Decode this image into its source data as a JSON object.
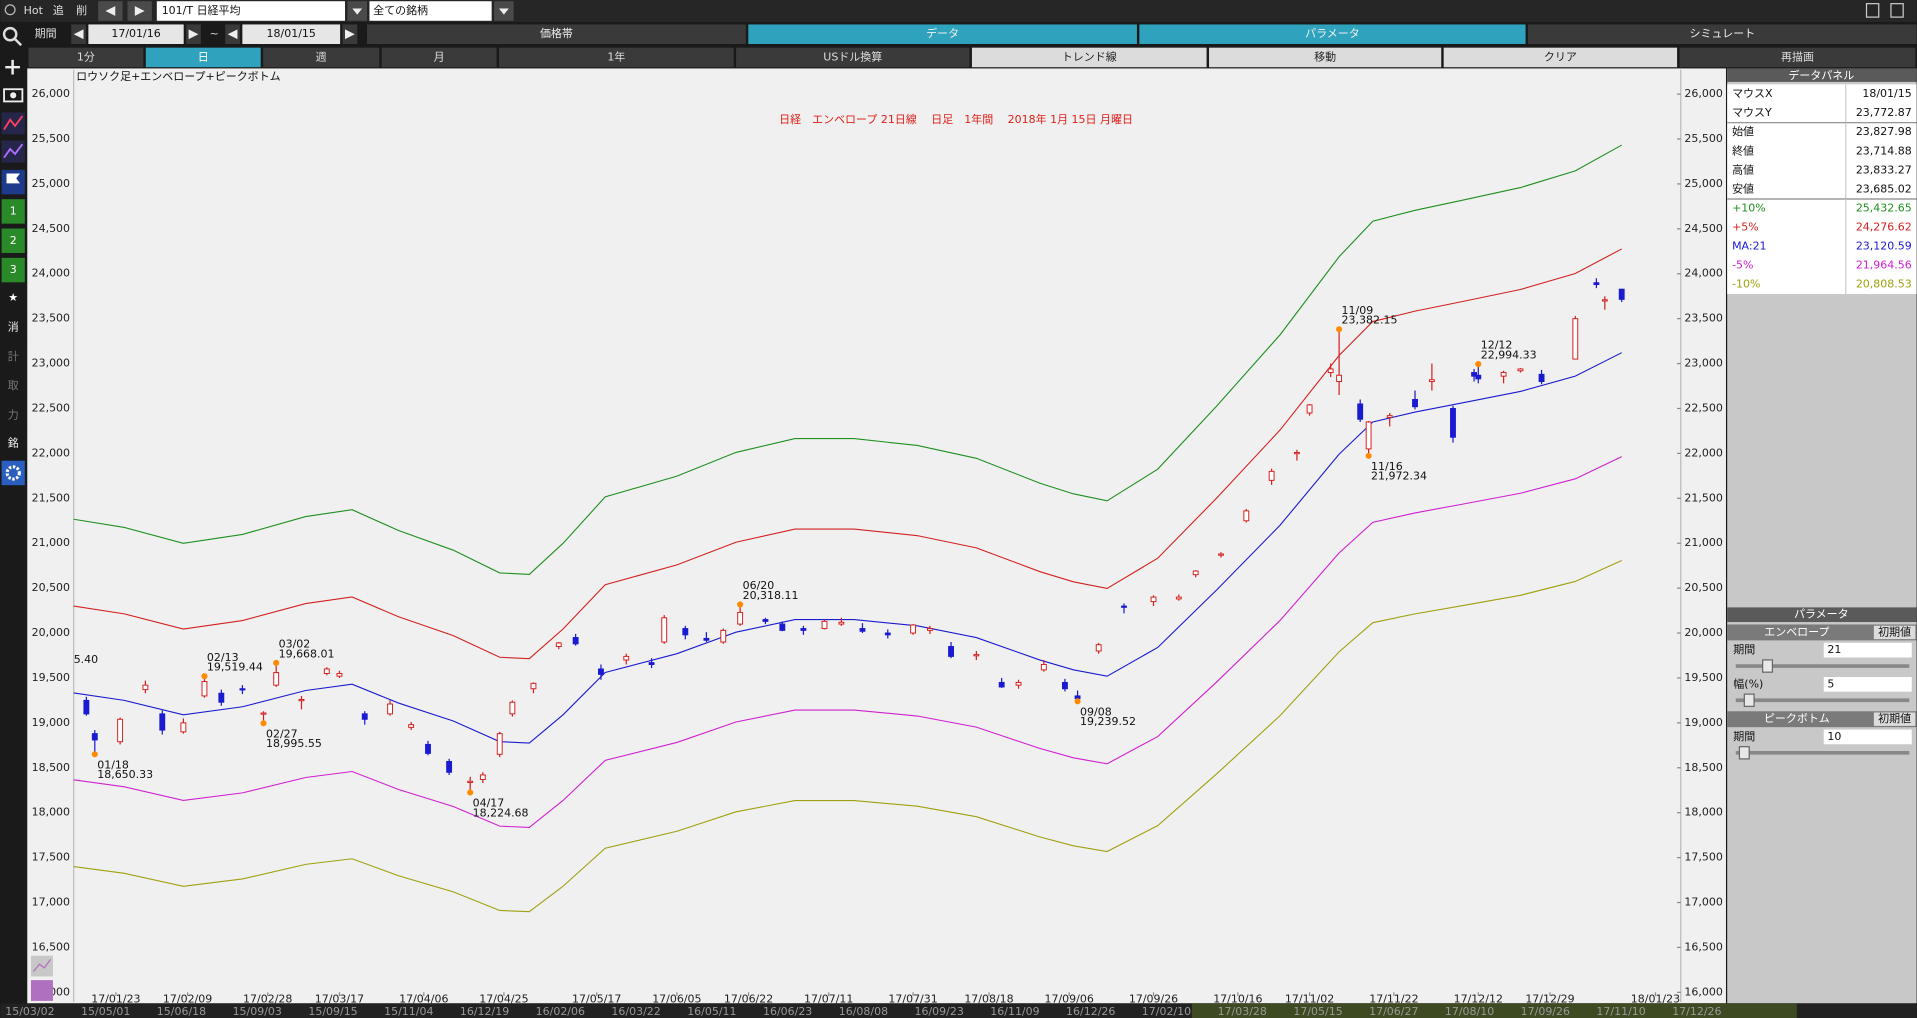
{
  "toolbar": {
    "hot": "Hot",
    "add": "追",
    "del": "削",
    "symbol": "101/T 日経平均",
    "universe": "全ての銘柄",
    "period_label": "期間",
    "from": "17/01/16",
    "tilde": "~",
    "to": "18/01/15"
  },
  "tabs": [
    "価格帯",
    "データ",
    "パラメータ",
    "シミュレート"
  ],
  "buttons": [
    "1分",
    "日",
    "週",
    "月",
    "1年",
    "USドル換算",
    "トレンド線",
    "移動",
    "クリア",
    "再描画"
  ],
  "sidebar": [
    "1",
    "2",
    "3",
    "★",
    "消",
    "計",
    "取",
    "力",
    "銘"
  ],
  "chart_data": {
    "type": "candlestick",
    "title": "日経　エンベロープ 21日線　 日足　1年間　 2018年 1月 15日 月曜日",
    "subtitle": "ロウソク足+エンベロープ+ピークボトム",
    "x": [
      "17/01/16",
      "17/01/18",
      "17/01/24",
      "17/01/30",
      "17/02/03",
      "17/02/08",
      "17/02/13",
      "17/02/17",
      "17/02/22",
      "17/02/27",
      "17/03/02",
      "17/03/08",
      "17/03/14",
      "17/03/17",
      "17/03/23",
      "17/03/29",
      "17/04/03",
      "17/04/07",
      "17/04/12",
      "17/04/17",
      "17/04/20",
      "17/04/24",
      "17/04/27",
      "17/05/02",
      "17/05/08",
      "17/05/12",
      "17/05/18",
      "17/05/24",
      "17/05/30",
      "17/06/02",
      "17/06/07",
      "17/06/12",
      "17/06/16",
      "17/06/20",
      "17/06/26",
      "17/06/30",
      "17/07/05",
      "17/07/10",
      "17/07/14",
      "17/07/19",
      "17/07/25",
      "17/07/31",
      "17/08/04",
      "17/08/09",
      "17/08/15",
      "17/08/21",
      "17/08/25",
      "17/08/31",
      "17/09/05",
      "17/09/08",
      "17/09/13",
      "17/09/19",
      "17/09/26",
      "17/10/02",
      "17/10/06",
      "17/10/12",
      "17/10/18",
      "17/10/24",
      "17/10/30",
      "17/11/02",
      "17/11/07",
      "17/11/09",
      "17/11/14",
      "17/11/16",
      "17/11/21",
      "17/11/27",
      "17/12/01",
      "17/12/06",
      "17/12/11",
      "17/12/12",
      "17/12/18",
      "17/12/22",
      "17/12/27",
      "18/01/04",
      "18/01/09",
      "18/01/11",
      "18/01/15"
    ],
    "open": [
      19250,
      18880,
      18790,
      19370,
      19100,
      18900,
      19300,
      19330,
      19380,
      19100,
      19420,
      19250,
      19550,
      19520,
      19100,
      19100,
      18950,
      18760,
      18570,
      18340,
      18370,
      18650,
      19100,
      19380,
      19850,
      19950,
      19600,
      19700,
      19670,
      19900,
      20050,
      19940,
      19900,
      20100,
      20150,
      20100,
      20050,
      20050,
      20100,
      20050,
      20000,
      20000,
      20030,
      19850,
      19750,
      19450,
      19420,
      19590,
      19450,
      19300,
      19800,
      20300,
      20350,
      20380,
      20650,
      20870,
      21250,
      21700,
      22000,
      22450,
      22900,
      22800,
      22550,
      22050,
      22400,
      22600,
      22800,
      22500,
      22900,
      22870,
      22860,
      22920,
      22880,
      23050,
      23900,
      23700,
      23827.98
    ],
    "high": [
      19290,
      18920,
      19060,
      19470,
      19140,
      19050,
      19520,
      19370,
      19420,
      19130,
      19668,
      19300,
      19620,
      19580,
      19130,
      19250,
      19010,
      18800,
      18600,
      18400,
      18450,
      18900,
      19250,
      19450,
      19900,
      19990,
      19650,
      19770,
      19720,
      20200,
      20080,
      20010,
      20050,
      20318,
      20170,
      20130,
      20080,
      20150,
      20170,
      20110,
      20040,
      20100,
      20080,
      19900,
      19800,
      19500,
      19480,
      19700,
      19490,
      19360,
      19890,
      20330,
      20420,
      20430,
      20700,
      20900,
      21380,
      21830,
      22040,
      22550,
      23000,
      23382,
      22600,
      22360,
      22450,
      22700,
      23000,
      22530,
      22940,
      22994,
      22920,
      22950,
      22930,
      23530,
      23950,
      23750,
      23833.27
    ],
    "low": [
      19080,
      18650,
      18760,
      19330,
      18870,
      18880,
      19280,
      19190,
      19320,
      18995,
      19400,
      19150,
      19530,
      19500,
      18980,
      19080,
      18920,
      18640,
      18420,
      18224,
      18330,
      18620,
      19070,
      19330,
      19820,
      19860,
      19480,
      19650,
      19610,
      19880,
      19930,
      19900,
      19880,
      20080,
      20100,
      20020,
      19980,
      20040,
      20080,
      20000,
      19940,
      19980,
      19990,
      19720,
      19700,
      19390,
      19380,
      19570,
      19350,
      19239,
      19770,
      20220,
      20300,
      20360,
      20620,
      20840,
      21230,
      21650,
      21920,
      22420,
      22850,
      22650,
      22350,
      21972,
      22300,
      22490,
      22700,
      22120,
      22800,
      22780,
      22780,
      22900,
      22770,
      23050,
      23840,
      23600,
      23685.02
    ],
    "close": [
      19100,
      18810,
      19040,
      19420,
      18920,
      19000,
      19460,
      19230,
      19370,
      19110,
      19560,
      19260,
      19600,
      19550,
      19040,
      19210,
      18980,
      18660,
      18450,
      18350,
      18420,
      18880,
      19230,
      19440,
      19890,
      19880,
      19540,
      19740,
      19650,
      20170,
      19980,
      19920,
      20030,
      20230,
      20130,
      20030,
      20030,
      20130,
      20120,
      20020,
      19980,
      20090,
      20050,
      19740,
      19760,
      19400,
      19450,
      19650,
      19380,
      19270,
      19870,
      20300,
      20400,
      20400,
      20690,
      20880,
      21360,
      21800,
      22010,
      22540,
      22940,
      22870,
      22380,
      22350,
      22420,
      22520,
      22820,
      22180,
      22860,
      22830,
      22900,
      22940,
      22800,
      23500,
      23880,
      23710,
      23714.88
    ],
    "up_color": "#d42020",
    "down_color": "#1a1ad0",
    "line_x": [
      "17/01/13",
      "17/01/25",
      "17/02/08",
      "17/02/22",
      "17/03/09",
      "17/03/20",
      "17/03/31",
      "17/04/13",
      "17/04/24",
      "17/05/01",
      "17/05/09",
      "17/05/19",
      "17/06/05",
      "17/06/19",
      "17/07/03",
      "17/07/17",
      "17/08/01",
      "17/08/15",
      "17/08/30",
      "17/09/07",
      "17/09/15",
      "17/09/27",
      "17/10/11",
      "17/10/26",
      "17/11/09",
      "17/11/17",
      "17/11/27",
      "17/12/08",
      "17/12/22",
      "18/01/04",
      "18/01/15"
    ],
    "lines": [
      {
        "color": "#1f8f1f",
        "values": [
          21266,
          21175,
          20999,
          21098,
          21296,
          21373,
          21142,
          20922,
          20669,
          20653,
          20999,
          21516,
          21747,
          22011,
          22165,
          22165,
          22088,
          21945,
          21670,
          21549,
          21472,
          21824,
          22528,
          23320,
          24189,
          24585,
          24706,
          24816,
          24959,
          25146,
          25432.65
        ]
      },
      {
        "color": "#d42020",
        "values": [
          20300,
          20213,
          20045,
          20139,
          20328,
          20402,
          20181,
          19971,
          19730,
          19714,
          20045,
          20538,
          20759,
          21011,
          21158,
          21158,
          21084,
          20948,
          20685,
          20570,
          20496,
          20832,
          21504,
          22260,
          23090,
          23468,
          23583,
          23688,
          23825,
          24003,
          24276.62
        ]
      },
      {
        "color": "#1a1ad0",
        "values": [
          19333,
          19250,
          19090,
          19180,
          19360,
          19430,
          19220,
          19020,
          18790,
          18775,
          19090,
          19560,
          19770,
          20010,
          20150,
          20150,
          20080,
          19950,
          19700,
          19590,
          19520,
          19840,
          20480,
          21200,
          21990,
          22350,
          22460,
          22560,
          22690,
          22860,
          23120.59
        ]
      },
      {
        "color": "#d020d0",
        "values": [
          18366,
          18288,
          18136,
          18221,
          18392,
          18459,
          18259,
          18069,
          17851,
          17836,
          18136,
          18582,
          18782,
          19010,
          19143,
          19143,
          19076,
          18953,
          18715,
          18611,
          18544,
          18848,
          19456,
          20140,
          20891,
          21233,
          21337,
          21432,
          21556,
          21717,
          21964.56
        ]
      },
      {
        "color": "#a0a010",
        "values": [
          17400,
          17325,
          17181,
          17262,
          17424,
          17487,
          17298,
          17118,
          16911,
          16898,
          17181,
          17604,
          17793,
          18009,
          18135,
          18135,
          18072,
          17955,
          17730,
          17631,
          17568,
          17856,
          18432,
          19080,
          19791,
          20115,
          20214,
          20304,
          20421,
          20574,
          20808.53
        ]
      }
    ],
    "xlim": [
      "17/01/13",
      "18/01/29"
    ],
    "xticks": [
      "17/01/23",
      "17/02/09",
      "17/02/28",
      "17/03/17",
      "17/04/06",
      "17/04/25",
      "17/05/17",
      "17/06/05",
      "17/06/22",
      "17/07/11",
      "17/07/31",
      "17/08/18",
      "17/09/06",
      "17/09/26",
      "17/10/16",
      "17/11/02",
      "17/11/22",
      "17/12/12",
      "17/12/29",
      "18/01/23"
    ],
    "ylim": [
      16000,
      26000
    ],
    "yticks": [
      {
        "value": 16000,
        "label": "16,000"
      },
      {
        "value": 16500,
        "label": "16,500"
      },
      {
        "value": 17000,
        "label": "17,000"
      },
      {
        "value": 17500,
        "label": "17,500"
      },
      {
        "value": 18000,
        "label": "18,000"
      },
      {
        "value": 18500,
        "label": "18,500"
      },
      {
        "value": 19000,
        "label": "19,000"
      },
      {
        "value": 19500,
        "label": "19,500"
      },
      {
        "value": 20000,
        "label": "20,000"
      },
      {
        "value": 20500,
        "label": "20,500"
      },
      {
        "value": 21000,
        "label": "21,000"
      },
      {
        "value": 21500,
        "label": "21,500"
      },
      {
        "value": 22000,
        "label": "22,000"
      },
      {
        "value": 22500,
        "label": "22,500"
      },
      {
        "value": 23000,
        "label": "23,000"
      },
      {
        "value": 23500,
        "label": "23,500"
      },
      {
        "value": 24000,
        "label": "24,000"
      },
      {
        "value": 24500,
        "label": "24,500"
      },
      {
        "value": 25000,
        "label": "25,000"
      },
      {
        "value": 25500,
        "label": "25,500"
      },
      {
        "value": 26000,
        "label": "26,000"
      }
    ],
    "annotations": [
      {
        "date": "01/18",
        "label": "18,650.33",
        "x": "17/01/18",
        "value": 18650.33,
        "kind": "bottom"
      },
      {
        "date": "02/13",
        "label": "19,519.44",
        "x": "17/02/13",
        "value": 19519.44,
        "kind": "top"
      },
      {
        "date": "02/27",
        "label": "18,995.55",
        "x": "17/02/27",
        "value": 18995.55,
        "kind": "bottom"
      },
      {
        "date": "03/02",
        "label": "19,668.01",
        "x": "17/03/02",
        "value": 19668.01,
        "kind": "top"
      },
      {
        "date": "04/17",
        "label": "18,224.68",
        "x": "17/04/17",
        "value": 18224.68,
        "kind": "bottom"
      },
      {
        "date": "06/20",
        "label": "20,318.11",
        "x": "17/06/20",
        "value": 20318.11,
        "kind": "top"
      },
      {
        "date": "09/08",
        "label": "19,239.52",
        "x": "17/09/08",
        "value": 19239.52,
        "kind": "bottom"
      },
      {
        "date": "11/09",
        "label": "23,382.15",
        "x": "17/11/09",
        "value": 23382.15,
        "kind": "top"
      },
      {
        "date": "11/16",
        "label": "21,972.34",
        "x": "17/11/16",
        "value": 21972.34,
        "kind": "bottom"
      },
      {
        "date": "12/12",
        "label": "22,994.33",
        "x": "17/12/12",
        "value": 22994.33,
        "kind": "top"
      }
    ],
    "clipped_label": "5.40",
    "marker_color": "#ff8a00"
  },
  "data_panel": {
    "title": "データパネル",
    "rows": [
      [
        "マウスX",
        "18/01/15"
      ],
      [
        "マウスY",
        "23,772.87"
      ],
      [
        "始値",
        "23,827.98"
      ],
      [
        "終値",
        "23,714.88"
      ],
      [
        "高値",
        "23,833.27"
      ],
      [
        "安値",
        "23,685.02"
      ],
      [
        "+10%",
        "25,432.65"
      ],
      [
        "+5%",
        "24,276.62"
      ],
      [
        "MA:21",
        "23,120.59"
      ],
      [
        "-5%",
        "21,964.56"
      ],
      [
        "-10%",
        "20,808.53"
      ]
    ]
  },
  "param_panel": {
    "title": "パラメータ",
    "sections": [
      {
        "title": "エンベロープ",
        "reset": "初期値",
        "fields": [
          [
            "期間",
            21
          ],
          [
            "幅(%)",
            5
          ]
        ]
      },
      {
        "title": "ピークボトム",
        "reset": "初期値",
        "fields": [
          [
            "期間",
            10
          ]
        ]
      }
    ]
  },
  "navigator": [
    "15/03/02",
    "15/05/01",
    "15/06/18",
    "15/09/03",
    "15/09/15",
    "15/11/04",
    "16/12/19",
    "16/02/06",
    "16/03/22",
    "16/05/11",
    "16/06/23",
    "16/08/08",
    "16/09/23",
    "16/11/09",
    "16/12/26",
    "17/02/10",
    "17/03/28",
    "17/05/15",
    "17/06/27",
    "17/08/10",
    "17/09/26",
    "17/11/10",
    "17/12/26"
  ]
}
